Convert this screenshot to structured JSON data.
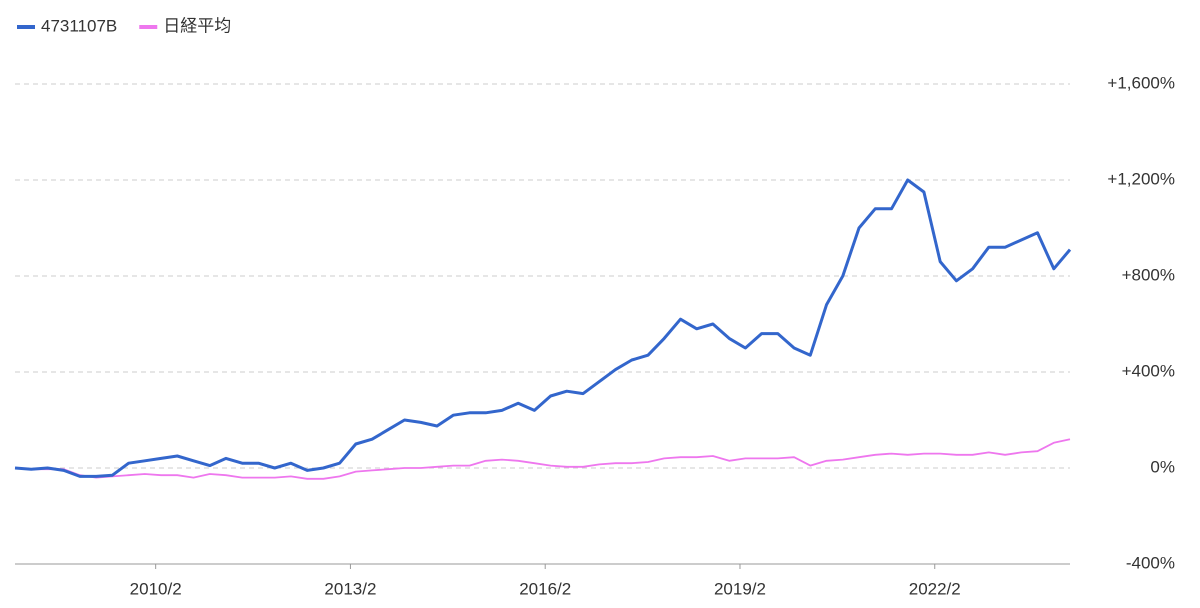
{
  "chart_data": {
    "type": "line",
    "x": [
      "2007/12",
      "2008/3",
      "2008/6",
      "2008/9",
      "2008/12",
      "2009/3",
      "2009/6",
      "2009/9",
      "2009/12",
      "2010/3",
      "2010/6",
      "2010/9",
      "2010/12",
      "2011/3",
      "2011/6",
      "2011/9",
      "2011/12",
      "2012/3",
      "2012/6",
      "2012/9",
      "2012/12",
      "2013/3",
      "2013/6",
      "2013/9",
      "2013/12",
      "2014/3",
      "2014/6",
      "2014/9",
      "2014/12",
      "2015/3",
      "2015/6",
      "2015/9",
      "2015/12",
      "2016/3",
      "2016/6",
      "2016/9",
      "2016/12",
      "2017/3",
      "2017/6",
      "2017/9",
      "2017/12",
      "2018/3",
      "2018/6",
      "2018/9",
      "2018/12",
      "2019/3",
      "2019/6",
      "2019/9",
      "2019/12",
      "2020/3",
      "2020/6",
      "2020/9",
      "2020/12",
      "2021/3",
      "2021/6",
      "2021/9",
      "2021/12",
      "2022/3",
      "2022/6",
      "2022/9",
      "2022/12",
      "2023/3",
      "2023/6",
      "2023/9",
      "2023/12",
      "2024/3"
    ],
    "series": [
      {
        "name": "4731107B",
        "color": "#3366cc",
        "values": [
          0,
          -5,
          0,
          -10,
          -35,
          -35,
          -30,
          20,
          30,
          40,
          50,
          30,
          10,
          40,
          20,
          20,
          0,
          20,
          -10,
          0,
          20,
          100,
          120,
          160,
          200,
          190,
          175,
          220,
          230,
          230,
          240,
          270,
          240,
          300,
          320,
          310,
          360,
          410,
          450,
          470,
          540,
          620,
          580,
          600,
          540,
          500,
          560,
          560,
          500,
          470,
          680,
          800,
          1000,
          1080,
          1080,
          1200,
          1150,
          860,
          780,
          830,
          920,
          920,
          950,
          980,
          830,
          910
        ]
      },
      {
        "name": "日経平均",
        "color": "#ee77ee",
        "values": [
          0,
          -5,
          -5,
          -5,
          -30,
          -40,
          -35,
          -30,
          -25,
          -30,
          -30,
          -40,
          -25,
          -30,
          -40,
          -40,
          -40,
          -35,
          -45,
          -45,
          -35,
          -15,
          -10,
          -5,
          0,
          0,
          5,
          10,
          10,
          30,
          35,
          30,
          20,
          10,
          5,
          5,
          15,
          20,
          20,
          25,
          40,
          45,
          45,
          50,
          30,
          40,
          40,
          40,
          45,
          10,
          30,
          35,
          45,
          55,
          60,
          55,
          60,
          60,
          55,
          55,
          65,
          55,
          65,
          70,
          105,
          120
        ]
      }
    ],
    "xlim": [
      "2007/12",
      "2024/3"
    ],
    "xticks": [
      "2010/2",
      "2013/2",
      "2016/2",
      "2019/2",
      "2022/2"
    ],
    "ylim": [
      -400,
      1600
    ],
    "yticks": [
      {
        "value": -400,
        "label": "-400%"
      },
      {
        "value": 0,
        "label": "0%"
      },
      {
        "value": 400,
        "label": "+400%"
      },
      {
        "value": 800,
        "label": "+800%"
      },
      {
        "value": 1200,
        "label": "+1,200%"
      },
      {
        "value": 1600,
        "label": "+1,600%"
      }
    ],
    "grid": true
  }
}
